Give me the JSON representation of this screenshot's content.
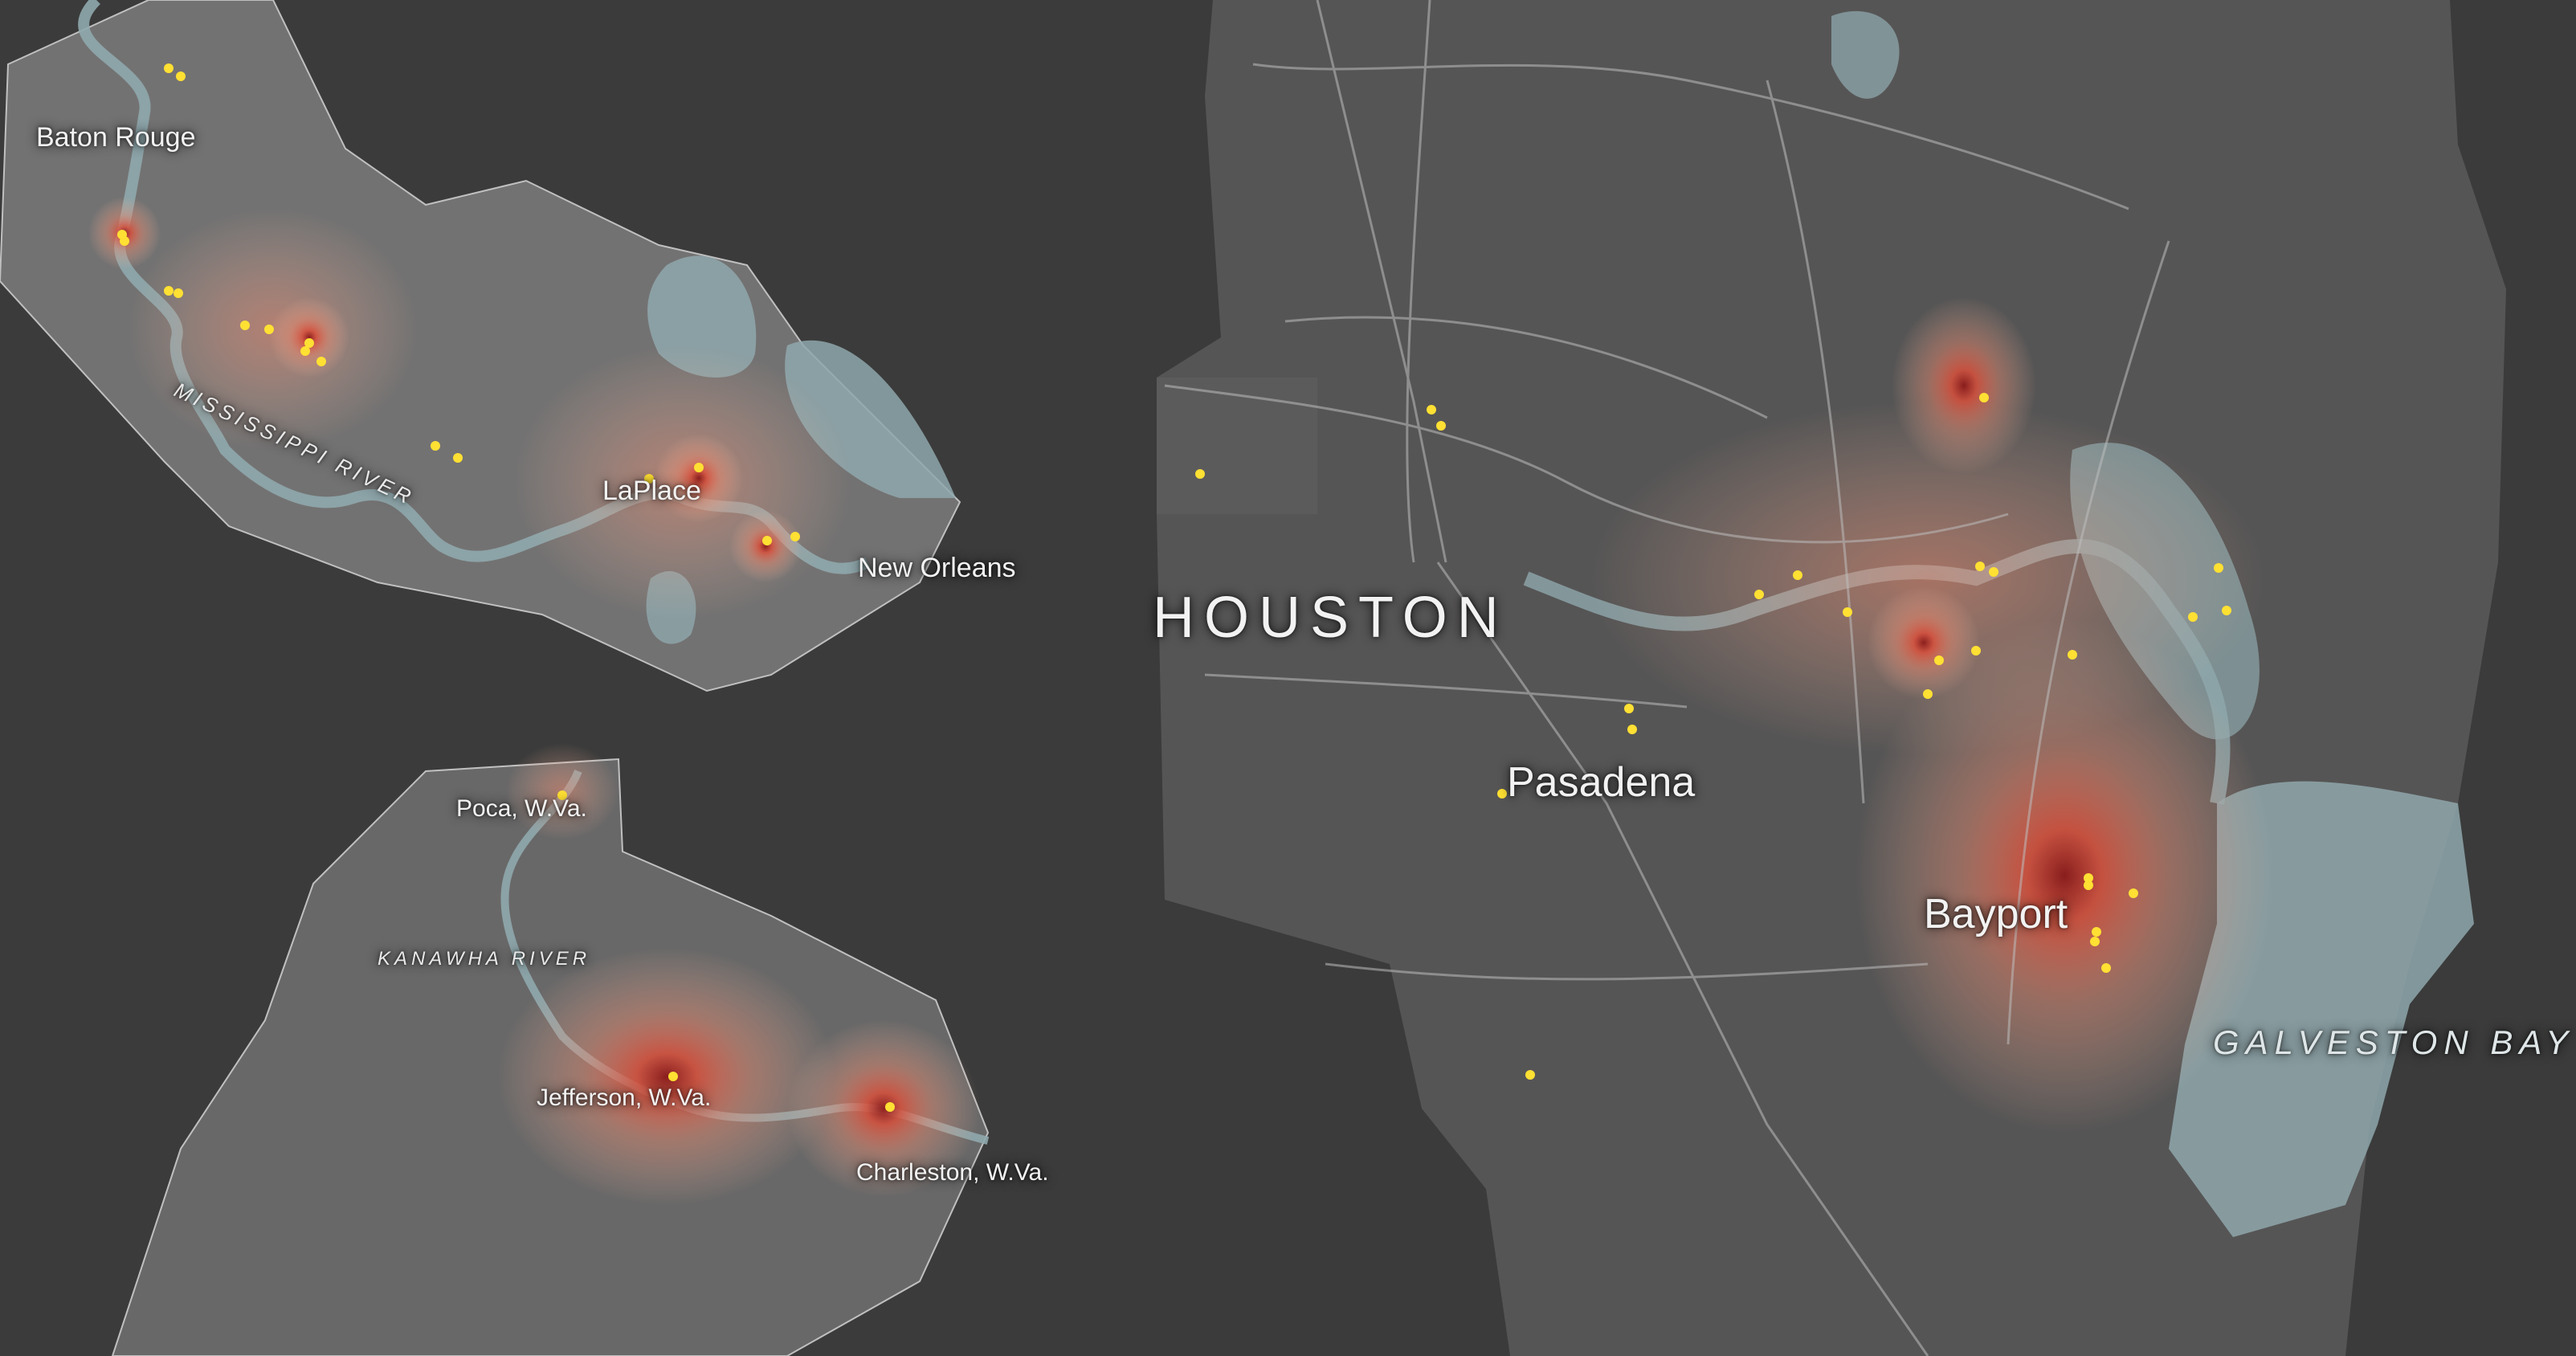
{
  "colors": {
    "background": "#3b3b3b",
    "region_fill": "#7a7878",
    "water": "#8fa8ad",
    "heat_high": "#8b1a1a",
    "heat_mid": "#e0705a",
    "heat_low": "#f0b8a0",
    "facility_dot": "#ffe033",
    "roads": "#bdbdbd"
  },
  "louisiana": {
    "labels": {
      "baton_rouge": "Baton Rouge",
      "mississippi_river": "MISSISSIPPI RIVER",
      "laplace": "LaPlace",
      "new_orleans": "New Orleans"
    }
  },
  "west_virginia": {
    "labels": {
      "poca": "Poca, W.Va.",
      "kanawha_river": "KANAWHA RIVER",
      "jefferson": "Jefferson, W.Va.",
      "charleston": "Charleston, W.Va."
    }
  },
  "houston": {
    "labels": {
      "houston": "HOUSTON",
      "pasadena": "Pasadena",
      "bayport": "Bayport",
      "galveston_bay": "GALVESTON BAY"
    }
  }
}
